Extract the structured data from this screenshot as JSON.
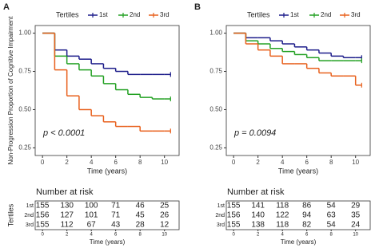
{
  "chart_data": [
    {
      "type": "km",
      "panel": "A",
      "ylabel": "Non-Progression Proportion of Cognitive Impairment",
      "xlabel": "Time (years)",
      "legend_title": "Tertiles",
      "annotation": "p < 0.0001",
      "x": [
        0,
        1,
        2,
        3,
        4,
        5,
        6,
        7,
        8,
        9,
        10,
        10.5
      ],
      "xlim": [
        -0.6,
        11.2
      ],
      "xticks": [
        0,
        2,
        4,
        6,
        8,
        10
      ],
      "ylim": [
        0.2,
        1.05
      ],
      "yticks": [
        0.25,
        {
          "value": 0.5,
          "label": "0.50"
        },
        0.75,
        {
          "value": 1.0,
          "label": "1.00"
        }
      ],
      "series": [
        {
          "name": "1st",
          "color": "#1c1c8a",
          "values": [
            1.0,
            0.89,
            0.85,
            0.83,
            0.8,
            0.77,
            0.75,
            0.73,
            0.73,
            0.73,
            0.73,
            0.73
          ]
        },
        {
          "name": "2nd",
          "color": "#22a022",
          "values": [
            1.0,
            0.85,
            0.8,
            0.76,
            0.72,
            0.67,
            0.63,
            0.6,
            0.58,
            0.57,
            0.57,
            0.57
          ]
        },
        {
          "name": "3rd",
          "color": "#e8601c",
          "values": [
            1.0,
            0.76,
            0.59,
            0.5,
            0.46,
            0.42,
            0.39,
            0.39,
            0.36,
            0.36,
            0.36,
            0.36
          ]
        }
      ],
      "risk_table": {
        "title": "Number at risk",
        "ylabel": "Tertiles",
        "xlabel": "Time (years)",
        "times": [
          0,
          2,
          4,
          6,
          8,
          10
        ],
        "rows": [
          {
            "label": "1st",
            "color": "#1c1c8a",
            "values": [
              155,
              130,
              100,
              71,
              46,
              25
            ]
          },
          {
            "label": "2nd",
            "color": "#22a022",
            "values": [
              156,
              127,
              101,
              71,
              45,
              26
            ]
          },
          {
            "label": "3rd",
            "color": "#e8601c",
            "values": [
              155,
              112,
              67,
              43,
              28,
              12
            ]
          }
        ]
      }
    },
    {
      "type": "km",
      "panel": "B",
      "xlabel": "Time (years)",
      "legend_title": "Tertiles",
      "annotation": "p = 0.0094",
      "x": [
        0,
        1,
        2,
        3,
        4,
        5,
        6,
        7,
        8,
        9,
        10,
        10.5
      ],
      "xlim": [
        -0.6,
        11.2
      ],
      "xticks": [
        0,
        2,
        4,
        6,
        8,
        10
      ],
      "ylim": [
        0.2,
        1.05
      ],
      "yticks": [
        0.25,
        {
          "value": 0.5,
          "label": "0.50"
        },
        0.75,
        {
          "value": 1.0,
          "label": "1.00"
        }
      ],
      "series": [
        {
          "name": "1st",
          "color": "#1c1c8a",
          "values": [
            1.0,
            0.97,
            0.97,
            0.95,
            0.93,
            0.91,
            0.89,
            0.87,
            0.85,
            0.84,
            0.84,
            0.84
          ]
        },
        {
          "name": "2nd",
          "color": "#22a022",
          "values": [
            1.0,
            0.95,
            0.93,
            0.9,
            0.88,
            0.86,
            0.84,
            0.82,
            0.82,
            0.82,
            0.82,
            0.82
          ]
        },
        {
          "name": "3rd",
          "color": "#e8601c",
          "values": [
            1.0,
            0.93,
            0.89,
            0.85,
            0.8,
            0.8,
            0.77,
            0.74,
            0.72,
            0.72,
            0.66,
            0.66
          ]
        }
      ],
      "risk_table": {
        "title": "Number at risk",
        "xlabel": "Time (years)",
        "times": [
          0,
          2,
          4,
          6,
          8,
          10
        ],
        "rows": [
          {
            "label": "1st",
            "color": "#1c1c8a",
            "values": [
              155,
              141,
              118,
              86,
              54,
              29
            ]
          },
          {
            "label": "2nd",
            "color": "#22a022",
            "values": [
              156,
              140,
              122,
              94,
              63,
              35
            ]
          },
          {
            "label": "3rd",
            "color": "#e8601c",
            "values": [
              155,
              138,
              118,
              82,
              54,
              24
            ]
          }
        ]
      }
    }
  ]
}
